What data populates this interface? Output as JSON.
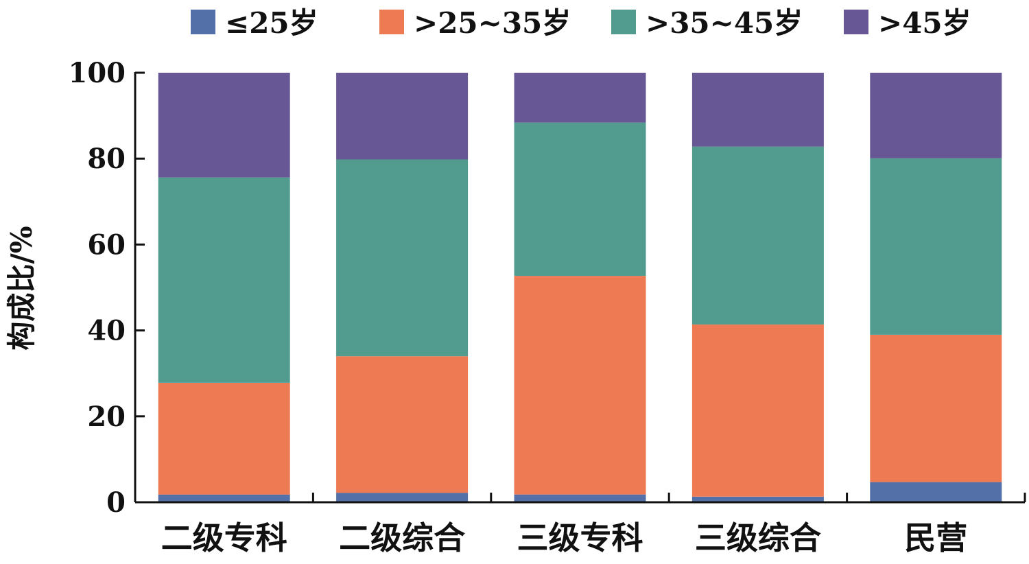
{
  "chart_data": {
    "type": "bar",
    "stacked": true,
    "title": "",
    "xlabel": "",
    "ylabel": "构成比/%",
    "ylim": [
      0,
      100
    ],
    "yticks": [
      0,
      20,
      40,
      60,
      80,
      100
    ],
    "grid": false,
    "legend_position": "top",
    "categories": [
      "二级专科",
      "二级综合",
      "三级专科",
      "三级综合",
      "民营"
    ],
    "series": [
      {
        "name": "≤25岁",
        "color": "#5470a8",
        "values": [
          1.8,
          2.2,
          1.8,
          1.3,
          4.7
        ]
      },
      {
        "name": ">25~35岁",
        "color": "#ee7a54",
        "values": [
          26.0,
          31.8,
          50.9,
          40.1,
          34.3
        ]
      },
      {
        "name": ">35~45岁",
        "color": "#519b8f",
        "values": [
          47.8,
          45.8,
          35.7,
          41.4,
          41.1
        ]
      },
      {
        "name": ">45岁",
        "color": "#675895",
        "values": [
          24.4,
          20.2,
          11.6,
          17.2,
          19.9
        ]
      }
    ]
  }
}
